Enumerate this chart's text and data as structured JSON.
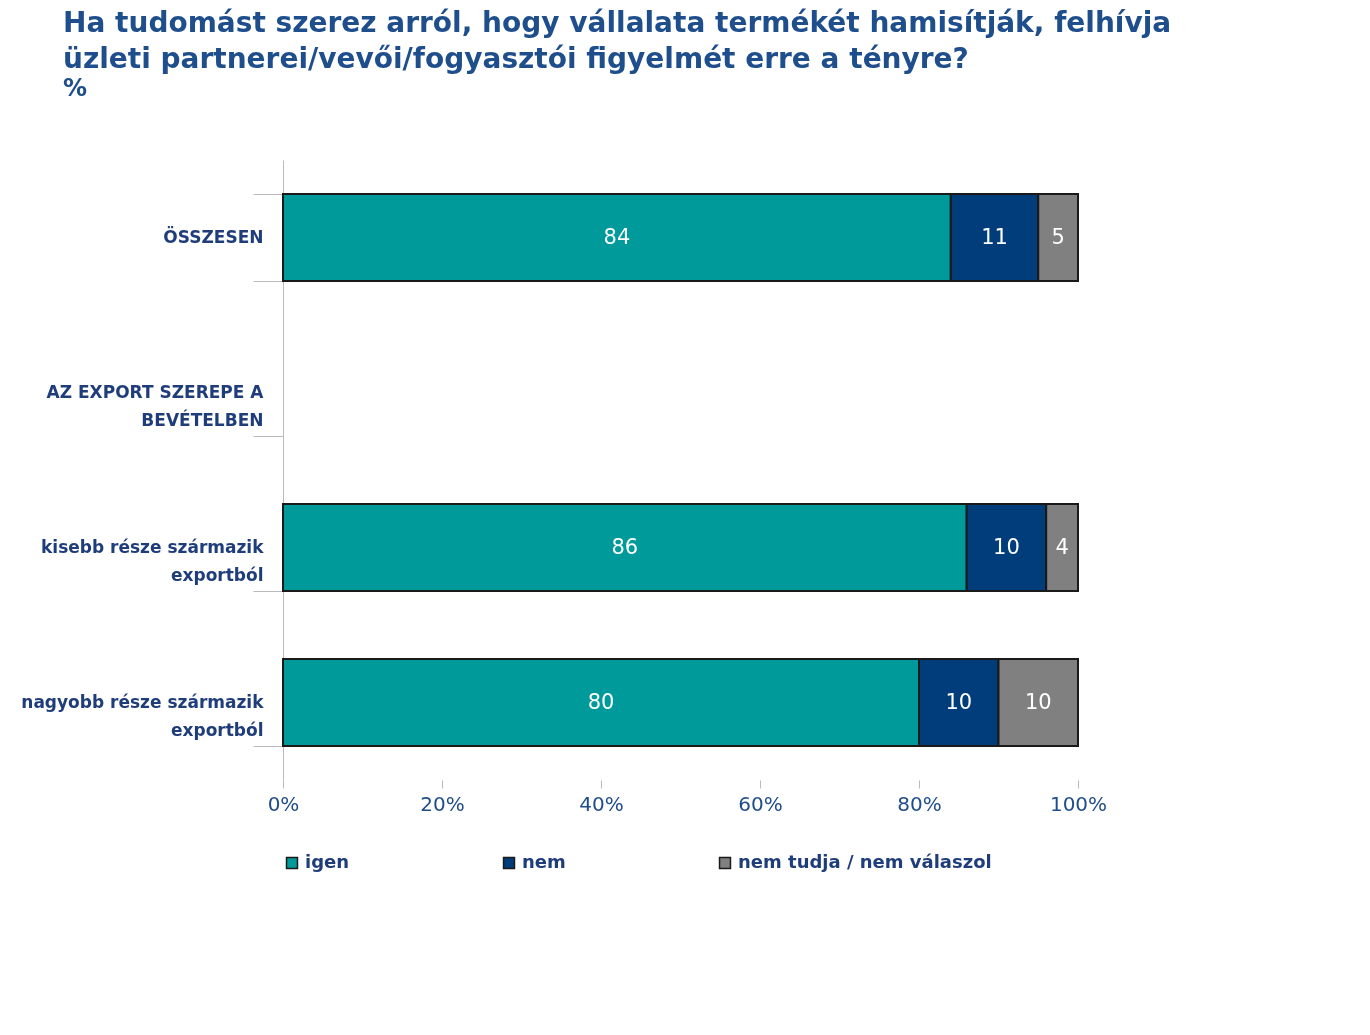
{
  "chart_data": {
    "type": "bar",
    "orientation": "horizontal",
    "stacked": true,
    "title": "Ha tudomást szerez arról, hogy vállalata termékét hamisítják, felhívja üzleti partnerei/vevői/fogyasztói figyelmét erre a tényre?",
    "subtitle": "%",
    "categories": [
      "ÖSSZESEN",
      "AZ EXPORT SZEREPE A BEVÉTELBEN",
      "kisebb része származik exportból",
      "nagyobb része származik exportból"
    ],
    "series": [
      {
        "name": "igen",
        "color": "#009a9a",
        "values": [
          84,
          null,
          86,
          80
        ]
      },
      {
        "name": "nem",
        "color": "#003d7a",
        "values": [
          11,
          null,
          10,
          10
        ]
      },
      {
        "name": "nem tudja / nem válaszol",
        "color": "#808080",
        "values": [
          5,
          null,
          4,
          10
        ]
      }
    ],
    "xlim": [
      0,
      100
    ],
    "xticks": [
      {
        "value": 0,
        "label": "0%"
      },
      {
        "value": 20,
        "label": "20%"
      },
      {
        "value": 40,
        "label": "40%"
      },
      {
        "value": 60,
        "label": "60%"
      },
      {
        "value": 80,
        "label": "80%"
      },
      {
        "value": 100,
        "label": "100%"
      }
    ],
    "data_labels": true,
    "grid": false,
    "legend": "bottom"
  }
}
